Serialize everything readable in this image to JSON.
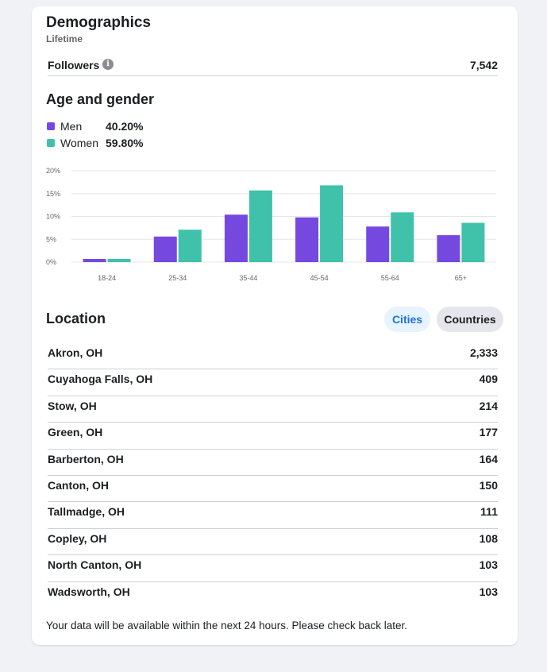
{
  "demographics": {
    "title": "Demographics",
    "subtitle": "Lifetime",
    "followers_label": "Followers",
    "followers_value": "7,542"
  },
  "age_gender": {
    "title": "Age and gender",
    "legend": [
      {
        "label": "Men",
        "pct": "40.20%",
        "color": "#7549e0"
      },
      {
        "label": "Women",
        "pct": "59.80%",
        "color": "#3fc1aa"
      }
    ]
  },
  "chart_data": {
    "type": "bar",
    "categories": [
      "18-24",
      "25-34",
      "35-44",
      "45-54",
      "55-64",
      "65+"
    ],
    "series": [
      {
        "name": "Men",
        "color": "#7549e0",
        "values": [
          0.7,
          5.6,
          10.4,
          9.8,
          7.8,
          5.9
        ]
      },
      {
        "name": "Women",
        "color": "#3fc1aa",
        "values": [
          0.7,
          7.1,
          15.7,
          16.8,
          10.9,
          8.6
        ]
      }
    ],
    "ylim": [
      0,
      20
    ],
    "yticks": [
      "0%",
      "5%",
      "10%",
      "15%",
      "20%"
    ],
    "ytick_values": [
      0,
      5,
      10,
      15,
      20
    ],
    "grid": true
  },
  "location": {
    "title": "Location",
    "cities_label": "Cities",
    "countries_label": "Countries",
    "items": [
      {
        "name": "Akron, OH",
        "value": "2,333"
      },
      {
        "name": "Cuyahoga Falls, OH",
        "value": "409"
      },
      {
        "name": "Stow, OH",
        "value": "214"
      },
      {
        "name": "Green, OH",
        "value": "177"
      },
      {
        "name": "Barberton, OH",
        "value": "164"
      },
      {
        "name": "Canton, OH",
        "value": "150"
      },
      {
        "name": "Tallmadge, OH",
        "value": "111"
      },
      {
        "name": "Copley, OH",
        "value": "108"
      },
      {
        "name": "North Canton, OH",
        "value": "103"
      },
      {
        "name": "Wadsworth, OH",
        "value": "103"
      }
    ]
  },
  "footer": "Your data will be available within the next 24 hours. Please check back later."
}
